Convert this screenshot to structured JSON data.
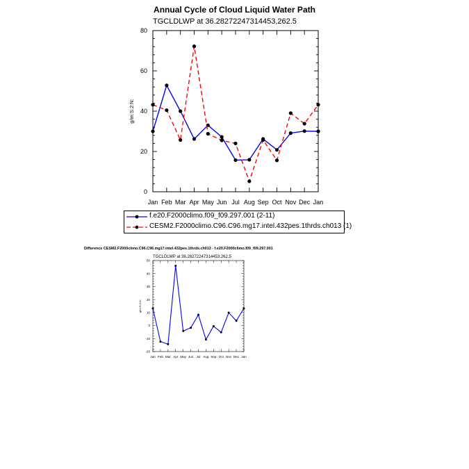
{
  "figure_title": "Annual Cycle of Cloud Liquid Water Path",
  "main_plot": {
    "subtitle": "TGCLDLWP at 36.28272247314453,262.5",
    "ylabel": "g/m:S:2:N:"
  },
  "legend": {
    "entries": [
      "f.e20.F2000climo.f09_f09.297.001 (2-11)",
      "CESM2.F2000climo.C96.C96.mg17.intel.432pes.1thrds.ch013 (1)"
    ]
  },
  "difference_plot": {
    "title": "Difference CESM2.F2000climo.C96.C96.mg17.intel.432pes.1thrds.ch013 - f.e20.F2000climo.f09_f09.297.001",
    "subtitle": "TGCLDLWP at 36.28272247314453,262.5",
    "ylabel": "g/m:S:2:N:"
  },
  "colors": {
    "series1": "#0000ff",
    "series2": "#ff0000",
    "diff": "#0000ff",
    "marker": "#000000"
  },
  "chart_data": [
    {
      "type": "line",
      "title": "Annual Cycle of Cloud Liquid Water Path",
      "subtitle": "TGCLDLWP at 36.28272247314453,262.5",
      "xlabel": "",
      "ylabel": "g/m:S:2:N:",
      "categories": [
        "Jan",
        "Feb",
        "Mar",
        "Apr",
        "May",
        "Jun",
        "Jul",
        "Aug",
        "Sep",
        "Oct",
        "Nov",
        "Dec",
        "Jan"
      ],
      "ylim": [
        0,
        80
      ],
      "yticks": [
        0,
        20,
        40,
        60,
        80
      ],
      "series": [
        {
          "name": "f.e20.F2000climo.f09_f09.297.001 (2-11)",
          "line_style": "solid",
          "values": [
            30,
            52.8,
            40,
            26.2,
            33,
            27.2,
            15.7,
            15.9,
            26.2,
            20.8,
            29.1,
            30.1,
            30
          ]
        },
        {
          "name": "CESM2.F2000climo.C96.C96.mg17.intel.432pes.1thrds.ch013 (1)",
          "line_style": "dashed",
          "values": [
            43.2,
            40.5,
            25.7,
            72.2,
            28.8,
            25.5,
            24,
            5.2,
            25.7,
            15.6,
            39,
            33.8,
            43.2
          ]
        }
      ],
      "grid": false,
      "legend_position": "below"
    },
    {
      "type": "line",
      "title": "Difference CESM2.F2000climo.C96.C96.mg17.intel.432pes.1thrds.ch013 - f.e20.F2000climo.f09_f09.297.001",
      "subtitle": "TGCLDLWP at 36.28272247314453,262.5",
      "xlabel": "",
      "ylabel": "g/m:S:2:N:",
      "categories": [
        "Jan",
        "Feb",
        "Mar",
        "Apr",
        "May",
        "Jun",
        "Jul",
        "Aug",
        "Sep",
        "Oct",
        "Nov",
        "Dec",
        "Jan"
      ],
      "ylim": [
        -20,
        50
      ],
      "yticks": [
        -20,
        -10,
        0,
        10,
        20,
        30,
        40,
        50
      ],
      "series": [
        {
          "values": [
            13.2,
            -12.3,
            -14.3,
            46,
            -4.2,
            -1.7,
            8.3,
            -10.7,
            -0.5,
            -5.2,
            9.9,
            3.7,
            13.2
          ]
        }
      ],
      "grid": false
    }
  ]
}
